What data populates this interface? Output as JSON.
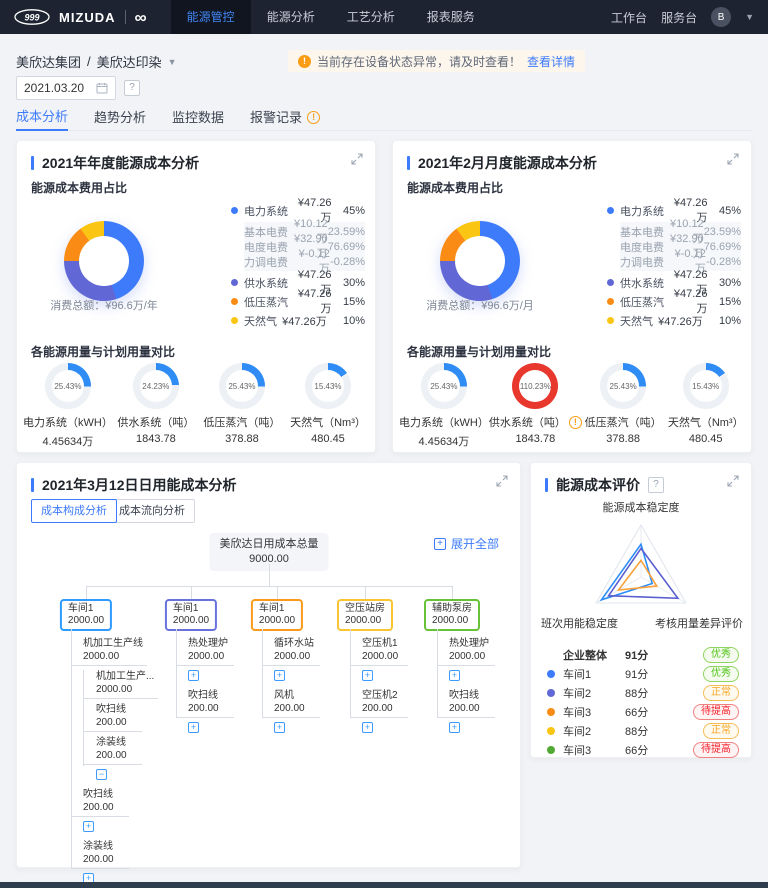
{
  "palette": {
    "accent": "#3e7bfa",
    "navbar_bg": "#1d2330",
    "nav_active": "#4185f4",
    "warning": "#fa9d15",
    "gauge_track": "#edf0f4",
    "gauge_fill": "#2f8cf5",
    "gauge_over": "#e8382d"
  },
  "navbar": {
    "brand": "MIZUDA",
    "menu": [
      {
        "label": "能源管控"
      },
      {
        "label": "能源分析"
      },
      {
        "label": "工艺分析"
      },
      {
        "label": "报表服务"
      }
    ],
    "workbench": "工作台",
    "service_desk": "服务台",
    "avatar": "B"
  },
  "breadcrumb": {
    "group": "美欣达集团",
    "sep": "/",
    "site": "美欣达印染"
  },
  "alert": {
    "text": "当前存在设备状态异常，请及时查看！",
    "link": "查看详情"
  },
  "filters": {
    "date": "2021.03.20",
    "help": "?"
  },
  "tabs": [
    {
      "label": "成本分析"
    },
    {
      "label": "趋势分析"
    },
    {
      "label": "监控数据"
    },
    {
      "label": "报警记录"
    }
  ],
  "cards": {
    "year": {
      "title": "2021年年度能源成本分析",
      "pie_section": "能源成本费用占比",
      "total_label": "消费总额：",
      "total_value": "¥96.6万/年",
      "donut": {
        "values": [
          45,
          30,
          15,
          10
        ],
        "colors": [
          "#3e7bfa",
          "#6168d6",
          "#fa8c16",
          "#fbc514"
        ]
      },
      "legend": [
        {
          "name": "电力系统",
          "value": "¥47.26万",
          "pct": "45%",
          "color": "#3e7bfa"
        },
        {
          "name": "供水系统",
          "value": "¥47.26万",
          "pct": "30%",
          "color": "#6168d6"
        },
        {
          "name": "低压蒸汽",
          "value": "¥47.26万",
          "pct": "15%",
          "color": "#fa8c16"
        },
        {
          "name": "天然气",
          "value": "¥47.26万",
          "pct": "10%",
          "color": "#fbc514"
        }
      ],
      "legend_sub": [
        {
          "name": "基本电费",
          "value": "¥10.12万",
          "pct": "23.59%"
        },
        {
          "name": "电度电费",
          "value": "¥32.90万",
          "pct": "76.69%"
        },
        {
          "name": "力调电费",
          "value": "¥-0.12万",
          "pct": "-0.28%"
        }
      ],
      "gauge_section": "各能源用量与计划用量对比",
      "gauges": [
        {
          "pct": 25.43,
          "pct_text": "25.43%",
          "label": "电力系统（kWH）",
          "value": "4.45634万"
        },
        {
          "pct": 24.23,
          "pct_text": "24.23%",
          "label": "供水系统（吨）",
          "value": "1843.78"
        },
        {
          "pct": 25.43,
          "pct_text": "25.43%",
          "label": "低压蒸汽（吨）",
          "value": "378.88"
        },
        {
          "pct": 15.43,
          "pct_text": "15.43%",
          "label": "天然气（Nm³）",
          "value": "480.45"
        }
      ]
    },
    "month": {
      "title": "2021年2月月度能源成本分析",
      "pie_section": "能源成本费用占比",
      "total_label": "消费总额：",
      "total_value": "¥96.6万/月",
      "donut": {
        "values": [
          45,
          30,
          15,
          10
        ],
        "colors": [
          "#3e7bfa",
          "#6168d6",
          "#fa8c16",
          "#fbc514"
        ]
      },
      "legend": [
        {
          "name": "电力系统",
          "value": "¥47.26万",
          "pct": "45%",
          "color": "#3e7bfa"
        },
        {
          "name": "供水系统",
          "value": "¥47.26万",
          "pct": "30%",
          "color": "#6168d6"
        },
        {
          "name": "低压蒸汽",
          "value": "¥47.26万",
          "pct": "15%",
          "color": "#fa8c16"
        },
        {
          "name": "天然气",
          "value": "¥47.26万",
          "pct": "10%",
          "color": "#fbc514"
        }
      ],
      "legend_sub": [
        {
          "name": "基本电费",
          "value": "¥10.12万",
          "pct": "23.59%"
        },
        {
          "name": "电度电费",
          "value": "¥32.90万",
          "pct": "76.69%"
        },
        {
          "name": "力调电费",
          "value": "¥-0.12万",
          "pct": "-0.28%"
        }
      ],
      "gauge_section": "各能源用量与计划用量对比",
      "gauges": [
        {
          "pct": 25.43,
          "pct_text": "25.43%",
          "label": "电力系统（kWH）",
          "value": "4.45634万"
        },
        {
          "pct": 110.23,
          "pct_text": "110.23%",
          "label": "供水系统（吨）",
          "value": "1843.78",
          "warning": true
        },
        {
          "pct": 25.43,
          "pct_text": "25.43%",
          "label": "低压蒸汽（吨）",
          "value": "378.88"
        },
        {
          "pct": 15.43,
          "pct_text": "15.43%",
          "label": "天然气（Nm³）",
          "value": "480.45"
        }
      ]
    },
    "daily": {
      "title": "2021年3月12日日用能成本分析",
      "btn_structure": "成本构成分析",
      "btn_flow": "成本流向分析",
      "expand_all": "展开全部",
      "root": {
        "label": "美欣达日用成本总量",
        "value": "9000.00"
      },
      "col1": {
        "name": "车间1",
        "value": "2000.00",
        "color": "#2f9bff",
        "child1": {
          "name": "机加工生产线",
          "value": "2000.00"
        },
        "sub1": {
          "name": "机加工生产...",
          "value": "2000.00"
        },
        "sub2": {
          "name": "吹扫线",
          "value": "200.00"
        },
        "sub3": {
          "name": "涂装线",
          "value": "200.00"
        },
        "child2": {
          "name": "吹扫线",
          "value": "200.00"
        },
        "child3": {
          "name": "涂装线",
          "value": "200.00"
        }
      },
      "col2": {
        "name": "车间1",
        "value": "2000.00",
        "color": "#6971dd",
        "child1": {
          "name": "热处理炉",
          "value": "2000.00"
        },
        "child2": {
          "name": "吹扫线",
          "value": "200.00"
        }
      },
      "col3": {
        "name": "车间1",
        "value": "2000.00",
        "color": "#fa9b1e",
        "child1": {
          "name": "循环水站",
          "value": "2000.00"
        },
        "child2": {
          "name": "风机",
          "value": "200.00"
        }
      },
      "col4": {
        "name": "空压站房",
        "value": "2000.00",
        "color": "#fbc531",
        "child1": {
          "name": "空压机1",
          "value": "2000.00"
        },
        "child2": {
          "name": "空压机2",
          "value": "200.00"
        }
      },
      "col5": {
        "name": "辅助泵房",
        "value": "2000.00",
        "color": "#67c23a",
        "child1": {
          "name": "热处理炉",
          "value": "2000.00"
        },
        "child2": {
          "name": "吹扫线",
          "value": "200.00"
        }
      }
    },
    "evaluation": {
      "title": "能源成本评价",
      "axes": [
        "能源成本稳定度",
        "班次用能稳定度",
        "考核用量差异评价"
      ],
      "radar": {
        "series": [
          {
            "color": "#2f8ef6",
            "values": [
              63,
              88,
              25
            ]
          },
          {
            "color": "#5a5fd0",
            "values": [
              55,
              72,
              82
            ]
          },
          {
            "color": "#f9a13a",
            "values": [
              32,
              50,
              35
            ]
          }
        ]
      },
      "rows": [
        {
          "name": "企业整体",
          "score": "91分",
          "badge": "优秀",
          "level": "good"
        },
        {
          "name": "车间1",
          "score": "91分",
          "badge": "优秀",
          "level": "good",
          "dot": "#3e7bfa"
        },
        {
          "name": "车间2",
          "score": "88分",
          "badge": "正常",
          "level": "normal",
          "dot": "#6168d6"
        },
        {
          "name": "车间3",
          "score": "66分",
          "badge": "待提高",
          "level": "bad",
          "dot": "#fa8c16"
        },
        {
          "name": "车间2",
          "score": "88分",
          "badge": "正常",
          "level": "normal",
          "dot": "#fbc514"
        },
        {
          "name": "车间3",
          "score": "66分",
          "badge": "待提高",
          "level": "bad",
          "dot": "#52a933"
        }
      ]
    }
  },
  "chart_data": [
    {
      "type": "pie",
      "title": "能源成本费用占比（年度）",
      "categories": [
        "电力系统",
        "供水系统",
        "低压蒸汽",
        "天然气"
      ],
      "values": [
        45,
        30,
        15,
        10
      ],
      "total": "¥96.6万/年",
      "legend_position": "right"
    },
    {
      "type": "pie",
      "title": "能源成本费用占比（月度）",
      "categories": [
        "电力系统",
        "供水系统",
        "低压蒸汽",
        "天然气"
      ],
      "values": [
        45,
        30,
        15,
        10
      ],
      "total": "¥96.6万/月",
      "legend_position": "right"
    },
    {
      "type": "radar",
      "title": "能源成本评价",
      "axes": [
        "能源成本稳定度",
        "班次用能稳定度",
        "考核用量差异评价"
      ],
      "series": [
        {
          "values": [
            63,
            88,
            25
          ]
        },
        {
          "values": [
            55,
            72,
            82
          ]
        },
        {
          "values": [
            32,
            50,
            35
          ]
        }
      ],
      "range": [
        0,
        100
      ]
    }
  ]
}
